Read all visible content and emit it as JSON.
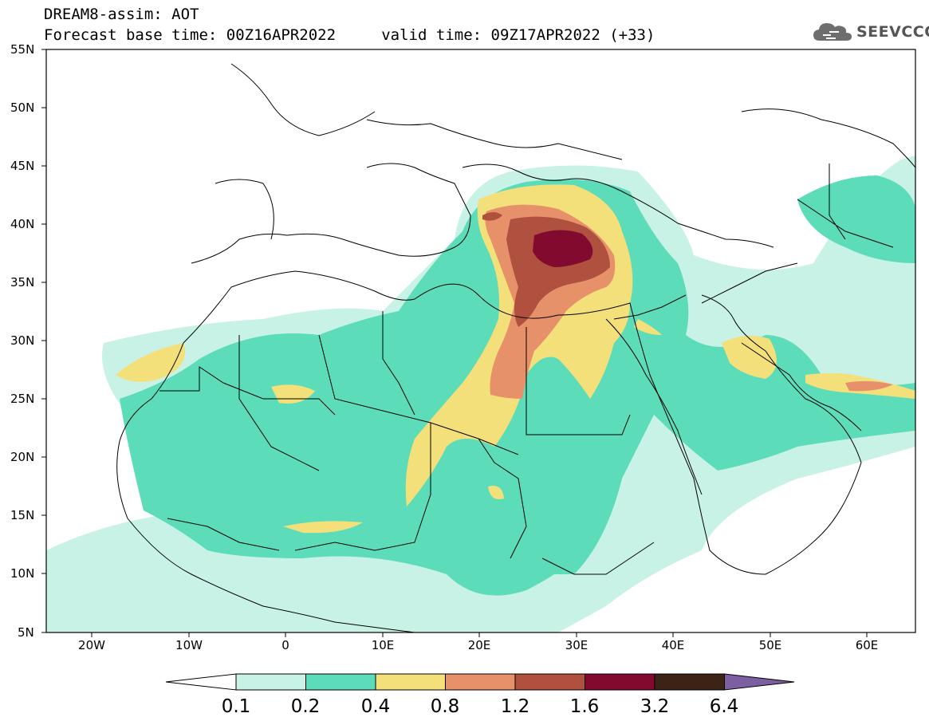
{
  "title": {
    "line1": "DREAM8-assim: AOT",
    "line2": "Forecast base time: 00Z16APR2022     valid time: 09Z17APR2022 (+33)"
  },
  "logo": {
    "text": "SEEVCCC",
    "icon": "cloud-logo-icon"
  },
  "map": {
    "lat_labels": [
      "55N",
      "50N",
      "45N",
      "40N",
      "35N",
      "30N",
      "25N",
      "20N",
      "15N",
      "10N",
      "5N"
    ],
    "lon_labels": [
      "20W",
      "10W",
      "0",
      "10E",
      "20E",
      "30E",
      "40E",
      "50E",
      "60E"
    ],
    "lat_range": [
      5,
      55
    ],
    "lon_range": [
      -25,
      65
    ]
  },
  "colorbar": {
    "labels": [
      "0.1",
      "0.2",
      "0.4",
      "0.8",
      "1.2",
      "1.6",
      "3.2",
      "6.4"
    ],
    "colors": [
      "#ffffff",
      "#c9f2e6",
      "#5ddcba",
      "#f4e07a",
      "#e7916a",
      "#b0503e",
      "#820a2e",
      "#3b2415",
      "#7b5fa0"
    ]
  }
}
